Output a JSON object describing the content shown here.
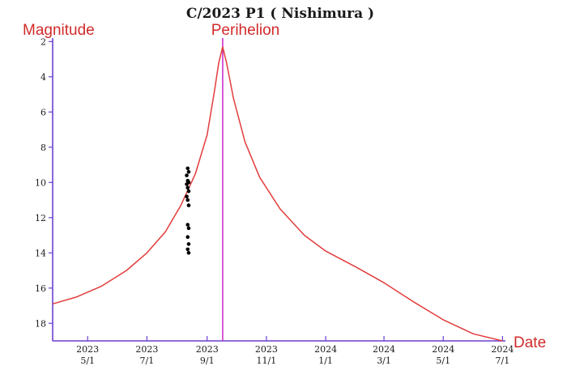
{
  "chart_data": {
    "type": "line",
    "title": "C/2023 P1 ( Nishimura )",
    "ylabel": "Magnitude",
    "xlabel": "Date",
    "annotation": "Perihelion",
    "y_inverted": true,
    "ylim": [
      19,
      1.8
    ],
    "y_ticks": [
      2,
      4,
      6,
      8,
      10,
      12,
      14,
      16,
      18
    ],
    "x_range": [
      "2023-03-26",
      "2024-07-04"
    ],
    "x_ticks": [
      {
        "date": "2023-05-01",
        "year": "2023",
        "md": "5/1"
      },
      {
        "date": "2023-07-01",
        "year": "2023",
        "md": "7/1"
      },
      {
        "date": "2023-09-01",
        "year": "2023",
        "md": "9/1"
      },
      {
        "date": "2023-11-01",
        "year": "2023",
        "md": "11/1"
      },
      {
        "date": "2024-01-01",
        "year": "2024",
        "md": "1/1"
      },
      {
        "date": "2024-03-01",
        "year": "2024",
        "md": "3/1"
      },
      {
        "date": "2024-05-01",
        "year": "2024",
        "md": "5/1"
      },
      {
        "date": "2024-07-01",
        "year": "2024",
        "md": "7/1"
      }
    ],
    "perihelion_date": "2023-09-17",
    "curve_color": "#e23c3c",
    "perihelion_color": "#cc33cc",
    "axis_color": "#6a3fd0",
    "points_color": "#000000",
    "series": [
      {
        "name": "",
        "type": "line",
        "points": [
          {
            "x": "2023-03-26",
            "y": 16.9
          },
          {
            "x": "2023-04-20",
            "y": 16.5
          },
          {
            "x": "2023-05-15",
            "y": 15.9
          },
          {
            "x": "2023-06-10",
            "y": 15.0
          },
          {
            "x": "2023-07-01",
            "y": 14.0
          },
          {
            "x": "2023-07-20",
            "y": 12.8
          },
          {
            "x": "2023-08-05",
            "y": 11.3
          },
          {
            "x": "2023-08-20",
            "y": 9.5
          },
          {
            "x": "2023-09-01",
            "y": 7.3
          },
          {
            "x": "2023-09-08",
            "y": 5.0
          },
          {
            "x": "2023-09-13",
            "y": 3.2
          },
          {
            "x": "2023-09-17",
            "y": 2.3
          },
          {
            "x": "2023-09-21",
            "y": 3.2
          },
          {
            "x": "2023-09-28",
            "y": 5.2
          },
          {
            "x": "2023-10-10",
            "y": 7.7
          },
          {
            "x": "2023-10-25",
            "y": 9.7
          },
          {
            "x": "2023-11-15",
            "y": 11.5
          },
          {
            "x": "2023-12-10",
            "y": 13.0
          },
          {
            "x": "2024-01-01",
            "y": 13.9
          },
          {
            "x": "2024-02-01",
            "y": 14.8
          },
          {
            "x": "2024-03-01",
            "y": 15.7
          },
          {
            "x": "2024-04-01",
            "y": 16.8
          },
          {
            "x": "2024-05-01",
            "y": 17.8
          },
          {
            "x": "2024-06-01",
            "y": 18.6
          },
          {
            "x": "2024-07-01",
            "y": 19.0
          }
        ]
      },
      {
        "name": "",
        "type": "scatter",
        "points": [
          {
            "x": "2023-08-12",
            "y": 9.2
          },
          {
            "x": "2023-08-13",
            "y": 9.4
          },
          {
            "x": "2023-08-11",
            "y": 9.6
          },
          {
            "x": "2023-08-12",
            "y": 9.9
          },
          {
            "x": "2023-08-13",
            "y": 10.0
          },
          {
            "x": "2023-08-11",
            "y": 10.1
          },
          {
            "x": "2023-08-12",
            "y": 10.3
          },
          {
            "x": "2023-08-13",
            "y": 10.5
          },
          {
            "x": "2023-08-11",
            "y": 10.8
          },
          {
            "x": "2023-08-12",
            "y": 11.0
          },
          {
            "x": "2023-08-13",
            "y": 11.3
          },
          {
            "x": "2023-08-12",
            "y": 12.4
          },
          {
            "x": "2023-08-13",
            "y": 12.6
          },
          {
            "x": "2023-08-12",
            "y": 13.1
          },
          {
            "x": "2023-08-13",
            "y": 13.5
          },
          {
            "x": "2023-08-12",
            "y": 13.8
          },
          {
            "x": "2023-08-13",
            "y": 14.0
          }
        ]
      }
    ]
  }
}
